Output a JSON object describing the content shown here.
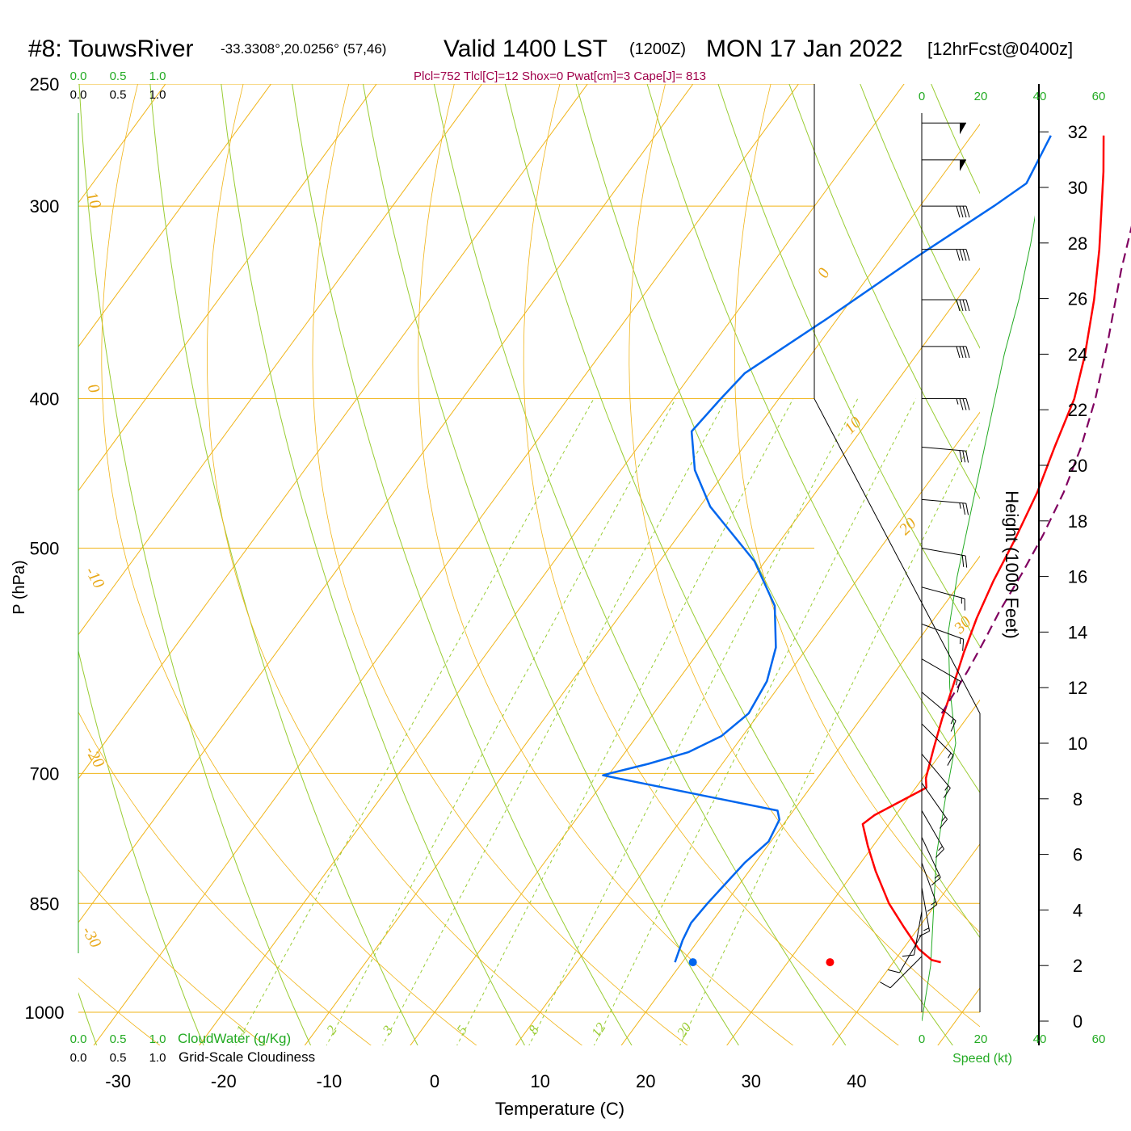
{
  "title": {
    "station": "#8: TouwsRiver",
    "coords": "-33.3308°,20.0256° (57,46)",
    "valid": "Valid 1400 LST",
    "zulu": "(1200Z)",
    "date": "MON 17 Jan 2022",
    "forecast": "[12hrFcst@0400z]"
  },
  "indices": "Plcl=752 Tlcl[C]=12 Shox=0 Pwat[cm]=3 Cape[J]= 813",
  "colors": {
    "isotherm": "#f0b418",
    "dry_adiabat": "#99cc33",
    "mixing_ratio": "#99cc33",
    "temperature": "#ff0000",
    "dewpoint": "#0066ee",
    "parcel": "#800060",
    "green_text": "#22aa22",
    "indices_text": "#a0004a"
  },
  "chart_data": {
    "type": "line",
    "chart_type": "skew-T log-P sounding",
    "xlabel": "Temperature (C)",
    "ylabel": "P (hPa)",
    "y2label": "Height (1000 Feet)",
    "x_ticks": [
      "-30",
      "-20",
      "-10",
      "0",
      "10",
      "20",
      "30",
      "40"
    ],
    "pressure_ticks": [
      "250",
      "300",
      "400",
      "500",
      "700",
      "850",
      "1000"
    ],
    "height_ticks": [
      "0",
      "2",
      "4",
      "6",
      "8",
      "10",
      "12",
      "14",
      "16",
      "18",
      "20",
      "22",
      "24",
      "26",
      "28",
      "30",
      "32"
    ],
    "ylim": [
      1000,
      250
    ],
    "isotherm_labels": [
      "10",
      "0",
      "-10",
      "-20",
      "-30",
      "0",
      "10",
      "20",
      "30"
    ],
    "mixing_ratio_labels": [
      "1",
      "2",
      "3",
      "5",
      "8",
      "12",
      "20"
    ],
    "cloud_scale_top_green": [
      "0.0",
      "0.5",
      "1.0"
    ],
    "cloud_scale_top_black": [
      "0.0",
      "0.5",
      "1.0"
    ],
    "cloud_scale_bottom_green": [
      "0.0",
      "0.5",
      "1.0"
    ],
    "cloud_scale_bottom_black": [
      "0.0",
      "0.5",
      "1.0"
    ],
    "cloudwater_label": "CloudWater (g/Kg)",
    "cloudiness_label": "Grid-Scale Cloudiness",
    "speed_label": "Speed (kt)",
    "speed_ticks_top": [
      "0",
      "20",
      "40",
      "60"
    ],
    "speed_ticks_bottom": [
      "0",
      "20",
      "40",
      "60"
    ],
    "series": [
      {
        "name": "temperature",
        "points": [
          [
            2.5,
            270
          ],
          [
            5,
            285
          ],
          [
            10,
            320
          ],
          [
            13,
            345
          ],
          [
            16,
            375
          ],
          [
            18,
            400
          ],
          [
            19.5,
            430
          ],
          [
            21,
            460
          ],
          [
            22.2,
            495
          ],
          [
            23,
            525
          ],
          [
            24,
            555
          ],
          [
            25.2,
            585
          ],
          [
            26.5,
            615
          ],
          [
            27.7,
            645
          ],
          [
            29,
            675
          ],
          [
            30.3,
            705
          ],
          [
            31,
            715
          ],
          [
            28,
            745
          ],
          [
            27.5,
            755
          ],
          [
            29.5,
            780
          ],
          [
            32,
            810
          ],
          [
            35.5,
            850
          ],
          [
            38.5,
            880
          ],
          [
            41.5,
            910
          ],
          [
            43.5,
            925
          ],
          [
            44.5,
            928
          ]
        ]
      },
      {
        "name": "dewpoint",
        "points": [
          [
            -2.5,
            270
          ],
          [
            -1.5,
            290
          ],
          [
            -3,
            300
          ],
          [
            -7,
            325
          ],
          [
            -11,
            355
          ],
          [
            -15,
            385
          ],
          [
            -15.5,
            400
          ],
          [
            -16,
            420
          ],
          [
            -13,
            445
          ],
          [
            -9,
            470
          ],
          [
            -1,
            510
          ],
          [
            4,
            545
          ],
          [
            7,
            580
          ],
          [
            8.5,
            610
          ],
          [
            9,
            640
          ],
          [
            8,
            662
          ],
          [
            6,
            678
          ],
          [
            3,
            690
          ],
          [
            0,
            700
          ],
          [
            -0.5,
            702
          ],
          [
            18.5,
            740
          ],
          [
            19.3,
            750
          ],
          [
            19.8,
            775
          ],
          [
            19,
            800
          ],
          [
            18.3,
            850
          ],
          [
            18.1,
            875
          ],
          [
            18.5,
            898
          ],
          [
            19.3,
            928
          ]
        ]
      },
      {
        "name": "parcel",
        "points": [
          [
            7.3,
            275
          ],
          [
            10,
            295
          ],
          [
            13.5,
            330
          ],
          [
            17,
            365
          ],
          [
            20,
            400
          ],
          [
            22,
            430
          ],
          [
            23.5,
            460
          ],
          [
            24.5,
            490
          ],
          [
            25.2,
            520
          ],
          [
            25.7,
            550
          ],
          [
            26.3,
            575
          ],
          [
            26.8,
            600
          ],
          [
            27.1,
            623
          ],
          [
            27.3,
            640
          ]
        ]
      }
    ],
    "surface_points": [
      {
        "name": "surface-temperature",
        "t": 34,
        "p": 928
      },
      {
        "name": "surface-dewpoint",
        "t": 21,
        "p": 928
      }
    ],
    "wind_speed_profile": [
      [
        0,
        0
      ],
      [
        2,
        3
      ],
      [
        4,
        4
      ],
      [
        6,
        5
      ],
      [
        8,
        8
      ],
      [
        10,
        11.5
      ],
      [
        12,
        9.5
      ],
      [
        14,
        9
      ],
      [
        16,
        12
      ],
      [
        18,
        16
      ],
      [
        20,
        20
      ],
      [
        22,
        24
      ],
      [
        24,
        28
      ],
      [
        26,
        33
      ],
      [
        28,
        37
      ],
      [
        30,
        40
      ],
      [
        32,
        45
      ],
      [
        34,
        50
      ]
    ],
    "wind_barbs": [
      {
        "p": 265,
        "speed_kt": 50,
        "direction_deg": 270
      },
      {
        "p": 280,
        "speed_kt": 50,
        "direction_deg": 270
      },
      {
        "p": 300,
        "speed_kt": 40,
        "direction_deg": 270
      },
      {
        "p": 320,
        "speed_kt": 40,
        "direction_deg": 270
      },
      {
        "p": 345,
        "speed_kt": 40,
        "direction_deg": 270
      },
      {
        "p": 370,
        "speed_kt": 40,
        "direction_deg": 270
      },
      {
        "p": 400,
        "speed_kt": 35,
        "direction_deg": 270
      },
      {
        "p": 430,
        "speed_kt": 30,
        "direction_deg": 275
      },
      {
        "p": 465,
        "speed_kt": 25,
        "direction_deg": 275
      },
      {
        "p": 500,
        "speed_kt": 20,
        "direction_deg": 280
      },
      {
        "p": 530,
        "speed_kt": 15,
        "direction_deg": 285
      },
      {
        "p": 560,
        "speed_kt": 15,
        "direction_deg": 290
      },
      {
        "p": 590,
        "speed_kt": 15,
        "direction_deg": 300
      },
      {
        "p": 620,
        "speed_kt": 15,
        "direction_deg": 310
      },
      {
        "p": 650,
        "speed_kt": 15,
        "direction_deg": 315
      },
      {
        "p": 680,
        "speed_kt": 15,
        "direction_deg": 320
      },
      {
        "p": 710,
        "speed_kt": 15,
        "direction_deg": 325
      },
      {
        "p": 740,
        "speed_kt": 15,
        "direction_deg": 330
      },
      {
        "p": 770,
        "speed_kt": 15,
        "direction_deg": 335
      },
      {
        "p": 800,
        "speed_kt": 15,
        "direction_deg": 340
      },
      {
        "p": 830,
        "speed_kt": 15,
        "direction_deg": 350
      },
      {
        "p": 860,
        "speed_kt": 10,
        "direction_deg": 10
      },
      {
        "p": 890,
        "speed_kt": 10,
        "direction_deg": 30
      },
      {
        "p": 920,
        "speed_kt": 10,
        "direction_deg": 45
      }
    ]
  }
}
